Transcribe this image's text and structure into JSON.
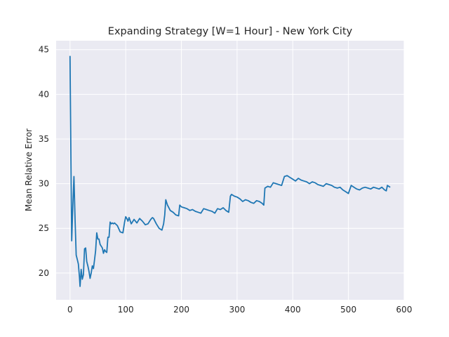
{
  "chart_data": {
    "type": "line",
    "title": "Expanding Strategy [W=1 Hour] - New York City",
    "xlabel": "",
    "ylabel": "Mean Relative Error",
    "xlim": [
      -25,
      600
    ],
    "ylim": [
      17,
      46
    ],
    "xticks": [
      0,
      100,
      200,
      300,
      400,
      500,
      600
    ],
    "yticks": [
      20,
      25,
      30,
      35,
      40,
      45
    ],
    "grid": true,
    "background": "#eaeaf2",
    "grid_color": "#ffffff",
    "series": [
      {
        "color": "#1f77b4",
        "x": [
          0,
          2,
          3,
          5,
          7,
          9,
          11,
          13,
          15,
          17,
          18,
          20,
          22,
          24,
          26,
          28,
          30,
          32,
          34,
          36,
          38,
          40,
          42,
          44,
          46,
          48,
          50,
          52,
          54,
          56,
          58,
          60,
          62,
          64,
          66,
          68,
          70,
          72,
          74,
          76,
          78,
          80,
          85,
          90,
          95,
          98,
          100,
          102,
          104,
          106,
          110,
          115,
          120,
          125,
          130,
          135,
          140,
          145,
          148,
          150,
          155,
          160,
          165,
          168,
          170,
          172,
          175,
          180,
          185,
          190,
          195,
          197,
          200,
          205,
          210,
          215,
          220,
          225,
          230,
          235,
          240,
          245,
          250,
          255,
          260,
          265,
          270,
          275,
          280,
          285,
          288,
          290,
          295,
          300,
          305,
          310,
          315,
          320,
          325,
          330,
          335,
          340,
          345,
          348,
          350,
          355,
          360,
          365,
          370,
          375,
          380,
          385,
          390,
          395,
          400,
          405,
          410,
          415,
          420,
          425,
          430,
          435,
          440,
          445,
          450,
          455,
          460,
          465,
          470,
          475,
          480,
          485,
          490,
          495,
          500,
          505,
          510,
          515,
          520,
          525,
          530,
          535,
          540,
          545,
          550,
          555,
          560,
          565,
          568,
          570,
          575
        ],
        "y": [
          44.3,
          30.0,
          23.6,
          27.5,
          30.8,
          26.0,
          22.0,
          21.5,
          21.0,
          19.5,
          18.5,
          20.4,
          19.3,
          19.8,
          22.7,
          22.8,
          21.3,
          20.8,
          20.2,
          19.4,
          20.0,
          20.8,
          20.5,
          21.5,
          22.5,
          24.5,
          23.8,
          23.8,
          23.2,
          23.0,
          22.8,
          22.2,
          22.6,
          22.4,
          22.3,
          24.0,
          24.0,
          25.7,
          25.5,
          25.6,
          25.5,
          25.6,
          25.3,
          24.6,
          24.5,
          25.7,
          26.3,
          26.1,
          25.8,
          26.2,
          25.5,
          26.0,
          25.6,
          26.1,
          25.8,
          25.4,
          25.5,
          26.0,
          26.2,
          26.1,
          25.5,
          25.0,
          24.8,
          25.5,
          26.5,
          28.2,
          27.6,
          27.0,
          26.8,
          26.5,
          26.4,
          27.6,
          27.4,
          27.3,
          27.2,
          27.0,
          27.1,
          26.9,
          26.8,
          26.7,
          27.2,
          27.1,
          27.0,
          26.9,
          26.7,
          27.2,
          27.1,
          27.3,
          27.0,
          26.8,
          28.6,
          28.8,
          28.6,
          28.5,
          28.3,
          28.0,
          28.2,
          28.1,
          27.9,
          27.8,
          28.1,
          28.0,
          27.8,
          27.6,
          29.5,
          29.7,
          29.6,
          30.1,
          30.0,
          29.9,
          29.8,
          30.8,
          30.9,
          30.7,
          30.5,
          30.3,
          30.6,
          30.4,
          30.3,
          30.2,
          30.0,
          30.2,
          30.1,
          29.9,
          29.8,
          29.7,
          30.0,
          29.9,
          29.8,
          29.6,
          29.5,
          29.6,
          29.3,
          29.1,
          28.9,
          29.8,
          29.6,
          29.4,
          29.3,
          29.5,
          29.6,
          29.5,
          29.4,
          29.6,
          29.5,
          29.4,
          29.6,
          29.3,
          29.2,
          29.8,
          29.6
        ]
      }
    ]
  }
}
